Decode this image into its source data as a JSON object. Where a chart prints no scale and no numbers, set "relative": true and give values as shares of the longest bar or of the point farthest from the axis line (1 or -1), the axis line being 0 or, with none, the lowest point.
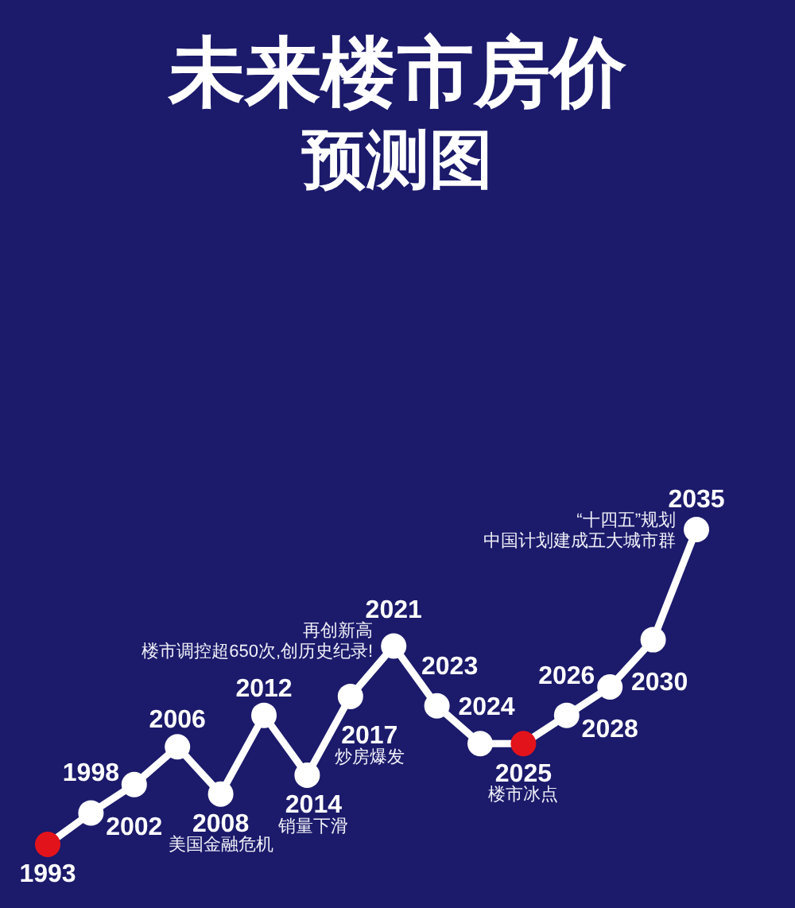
{
  "chart_data": {
    "type": "line",
    "title": "未来楼市房价",
    "subtitle": "预测图",
    "relative": true,
    "categories": [
      "1993",
      "1998",
      "2002",
      "2006",
      "2008",
      "2012",
      "2014",
      "2017",
      "2021",
      "2023",
      "2024",
      "2025",
      "2026",
      "2028",
      "2030",
      "2035"
    ],
    "values": [
      0,
      0.1,
      0.19,
      0.31,
      0.16,
      0.41,
      0.22,
      0.47,
      0.63,
      0.44,
      0.32,
      0.32,
      0.41,
      0.5,
      0.65,
      1
    ],
    "color": "#ffffff",
    "colors": [
      "#e3131b",
      "#ffffff",
      "#ffffff",
      "#ffffff",
      "#ffffff",
      "#ffffff",
      "#ffffff",
      "#ffffff",
      "#ffffff",
      "#ffffff",
      "#ffffff",
      "#e3131b",
      "#ffffff",
      "#ffffff",
      "#ffffff",
      "#ffffff"
    ],
    "marker": "circle",
    "line_style": "solid",
    "annotations": [
      {
        "text": "再创新高",
        "x": "2021",
        "y": 0.63
      },
      {
        "text": "楼市调控超650次,创历史纪录!",
        "x": "2021",
        "y": 0.63
      },
      {
        "text": "炒房爆发",
        "x": "2017",
        "y": 0.47
      },
      {
        "text": "美国金融危机",
        "x": "2008",
        "y": 0.16
      },
      {
        "text": "销量下滑",
        "x": "2014",
        "y": 0.22
      },
      {
        "text": "楼市冰点",
        "x": "2025",
        "y": 0.32
      },
      {
        "text": "“十四五”规划",
        "x": "2035",
        "y": 1
      },
      {
        "text": "中国计划建成五大城市群",
        "x": "2035",
        "y": 1
      }
    ]
  }
}
